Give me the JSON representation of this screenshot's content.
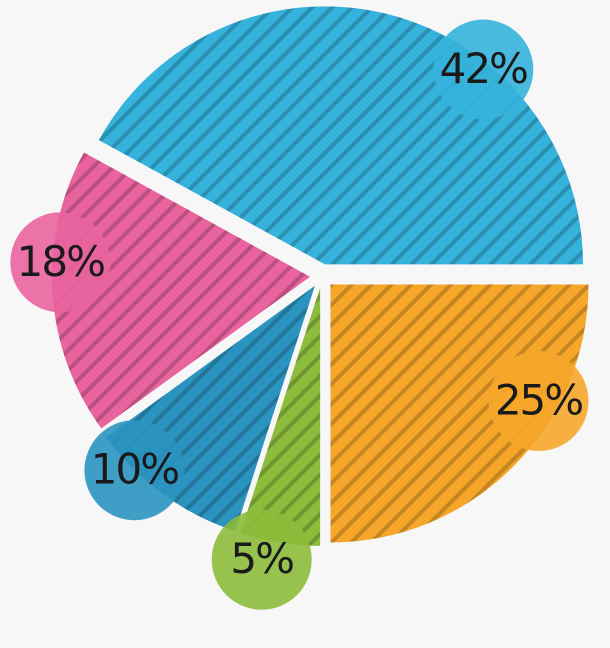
{
  "chart_data": {
    "type": "pie",
    "values": [
      42,
      18,
      10,
      5,
      25
    ],
    "value_labels": [
      "42%",
      "18%",
      "10%",
      "5%",
      "25%"
    ],
    "colors": [
      "#35b3dc",
      "#e9649f",
      "#2a93bf",
      "#8dbb3b",
      "#f6a72a"
    ]
  }
}
